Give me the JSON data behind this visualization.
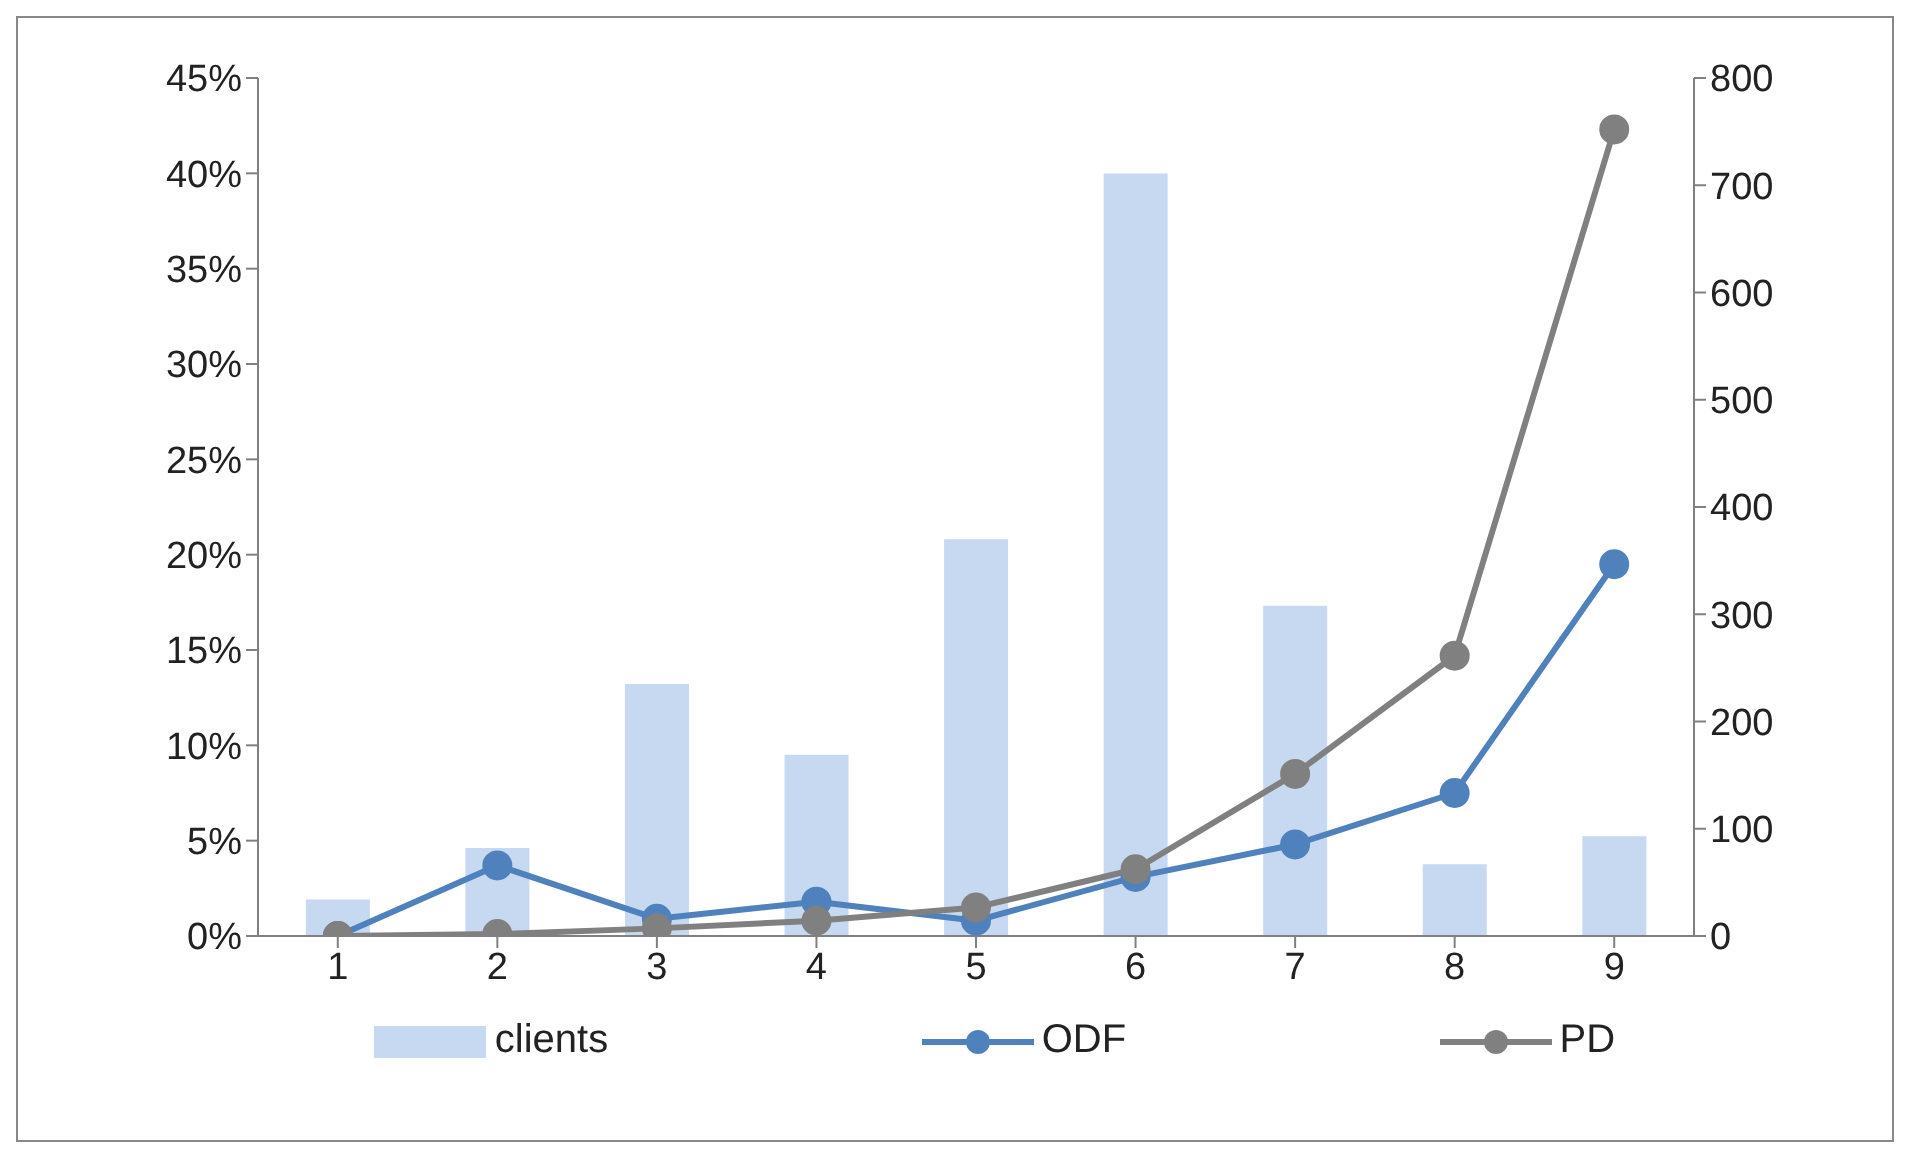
{
  "chart_data": {
    "type": "bar",
    "categories": [
      "1",
      "2",
      "3",
      "4",
      "5",
      "6",
      "7",
      "8",
      "9"
    ],
    "series": [
      {
        "name": "clients",
        "color": "#c6d9f1",
        "axis": "y2",
        "values": [
          34,
          82,
          235,
          169,
          370,
          711,
          308,
          67,
          93
        ]
      },
      {
        "name": "ODF",
        "type": "line",
        "color": "#4f81bd",
        "values": [
          0,
          3.7,
          0.9,
          1.8,
          0.8,
          3.1,
          4.8,
          7.5,
          19.5
        ]
      },
      {
        "name": "PD",
        "type": "line",
        "color": "#808080",
        "values": [
          0,
          0.1,
          0.4,
          0.8,
          1.5,
          3.5,
          8.5,
          14.7,
          42.3
        ]
      }
    ],
    "ylim": [
      0,
      45
    ],
    "yticks": [
      {
        "value": 0,
        "label": "0%"
      },
      {
        "value": 5,
        "label": "5%"
      },
      {
        "value": 10,
        "label": "10%"
      },
      {
        "value": 15,
        "label": "15%"
      },
      {
        "value": 20,
        "label": "20%"
      },
      {
        "value": 25,
        "label": "25%"
      },
      {
        "value": 30,
        "label": "30%"
      },
      {
        "value": 35,
        "label": "35%"
      },
      {
        "value": 40,
        "label": "40%"
      },
      {
        "value": 45,
        "label": "45%"
      }
    ],
    "y2lim": [
      0,
      800
    ],
    "y2ticks": [
      0,
      100,
      200,
      300,
      400,
      500,
      600,
      700,
      800
    ],
    "marker": "circle",
    "legend": "bottom",
    "grid": false
  }
}
